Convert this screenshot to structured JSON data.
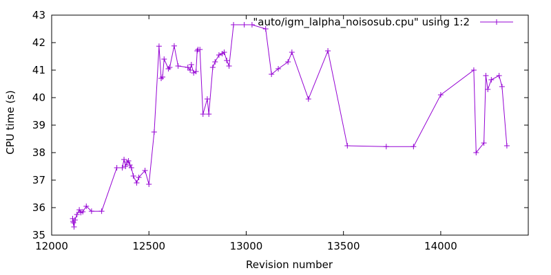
{
  "chart_data": {
    "type": "line",
    "title": "",
    "xlabel": "Revision number",
    "ylabel": "CPU time (s)",
    "xlim": [
      12000,
      14450
    ],
    "ylim": [
      35,
      43
    ],
    "x_ticks": [
      "12000",
      "12500",
      "13000",
      "13500",
      "14000"
    ],
    "y_ticks": [
      "35",
      "36",
      "37",
      "38",
      "39",
      "40",
      "41",
      "42",
      "43"
    ],
    "grid": false,
    "legend_position": "top-right",
    "series": [
      {
        "name": "\"auto/igm_lalpha_noisosub.cpu\" using 1:2",
        "color": "#9400d3",
        "marker": "plus",
        "points": [
          [
            12108,
            35.6
          ],
          [
            12110,
            35.5
          ],
          [
            12112,
            35.45
          ],
          [
            12115,
            35.3
          ],
          [
            12120,
            35.55
          ],
          [
            12130,
            35.75
          ],
          [
            12142,
            35.92
          ],
          [
            12150,
            35.82
          ],
          [
            12160,
            35.85
          ],
          [
            12178,
            36.05
          ],
          [
            12205,
            35.87
          ],
          [
            12257,
            35.87
          ],
          [
            12335,
            37.45
          ],
          [
            12363,
            37.45
          ],
          [
            12372,
            37.75
          ],
          [
            12380,
            37.5
          ],
          [
            12388,
            37.65
          ],
          [
            12395,
            37.7
          ],
          [
            12402,
            37.55
          ],
          [
            12410,
            37.45
          ],
          [
            12420,
            37.15
          ],
          [
            12437,
            36.9
          ],
          [
            12448,
            37.1
          ],
          [
            12480,
            37.35
          ],
          [
            12500,
            36.85
          ],
          [
            12527,
            38.75
          ],
          [
            12552,
            41.87
          ],
          [
            12563,
            40.7
          ],
          [
            12570,
            40.75
          ],
          [
            12578,
            41.4
          ],
          [
            12600,
            41.05
          ],
          [
            12607,
            41.1
          ],
          [
            12630,
            41.88
          ],
          [
            12650,
            41.15
          ],
          [
            12700,
            41.1
          ],
          [
            12712,
            41.0
          ],
          [
            12718,
            41.2
          ],
          [
            12730,
            40.9
          ],
          [
            12742,
            40.95
          ],
          [
            12748,
            41.7
          ],
          [
            12752,
            41.75
          ],
          [
            12762,
            41.75
          ],
          [
            12778,
            39.4
          ],
          [
            12800,
            39.95
          ],
          [
            12808,
            39.4
          ],
          [
            12828,
            41.1
          ],
          [
            12840,
            41.3
          ],
          [
            12860,
            41.55
          ],
          [
            12877,
            41.6
          ],
          [
            12887,
            41.65
          ],
          [
            12900,
            41.35
          ],
          [
            12912,
            41.15
          ],
          [
            12935,
            42.65
          ],
          [
            12990,
            42.65
          ],
          [
            13030,
            42.65
          ],
          [
            13100,
            42.5
          ],
          [
            13130,
            40.85
          ],
          [
            13165,
            41.05
          ],
          [
            13215,
            41.3
          ],
          [
            13235,
            41.65
          ],
          [
            13320,
            39.95
          ],
          [
            13420,
            41.7
          ],
          [
            13520,
            38.25
          ],
          [
            13720,
            38.22
          ],
          [
            13860,
            38.22
          ],
          [
            14000,
            40.1
          ],
          [
            14170,
            41.0
          ],
          [
            14182,
            38.0
          ],
          [
            14222,
            38.35
          ],
          [
            14232,
            40.8
          ],
          [
            14242,
            40.3
          ],
          [
            14260,
            40.65
          ],
          [
            14300,
            40.8
          ],
          [
            14315,
            40.4
          ],
          [
            14340,
            38.25
          ]
        ]
      }
    ]
  }
}
